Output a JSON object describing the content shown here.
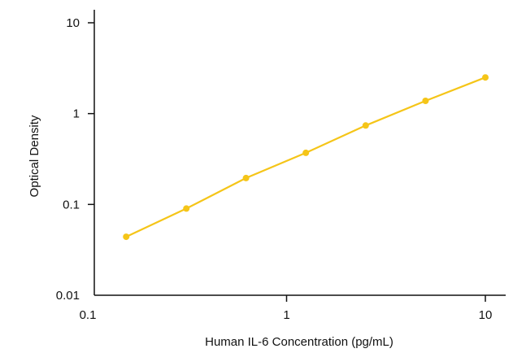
{
  "chart_data": {
    "type": "line",
    "title": "",
    "xlabel": "Human IL-6 Concentration (pg/mL)",
    "ylabel": "Optical Density",
    "x_scale": "log",
    "y_scale": "log",
    "xlim": [
      0.1,
      10
    ],
    "ylim": [
      0.01,
      10
    ],
    "x_ticks": [
      {
        "value": 0.1,
        "label": "0.1"
      },
      {
        "value": 1,
        "label": "1"
      },
      {
        "value": 10,
        "label": "10"
      }
    ],
    "y_ticks": [
      {
        "value": 0.01,
        "label": "0.01"
      },
      {
        "value": 0.1,
        "label": "0.1"
      },
      {
        "value": 1,
        "label": "1"
      },
      {
        "value": 10,
        "label": "10"
      }
    ],
    "grid": false,
    "series": [
      {
        "color": "#f5c518",
        "x": [
          0.156,
          0.313,
          0.625,
          1.25,
          2.5,
          5,
          10
        ],
        "y": [
          0.044,
          0.09,
          0.195,
          0.37,
          0.74,
          1.38,
          2.5
        ]
      }
    ]
  }
}
